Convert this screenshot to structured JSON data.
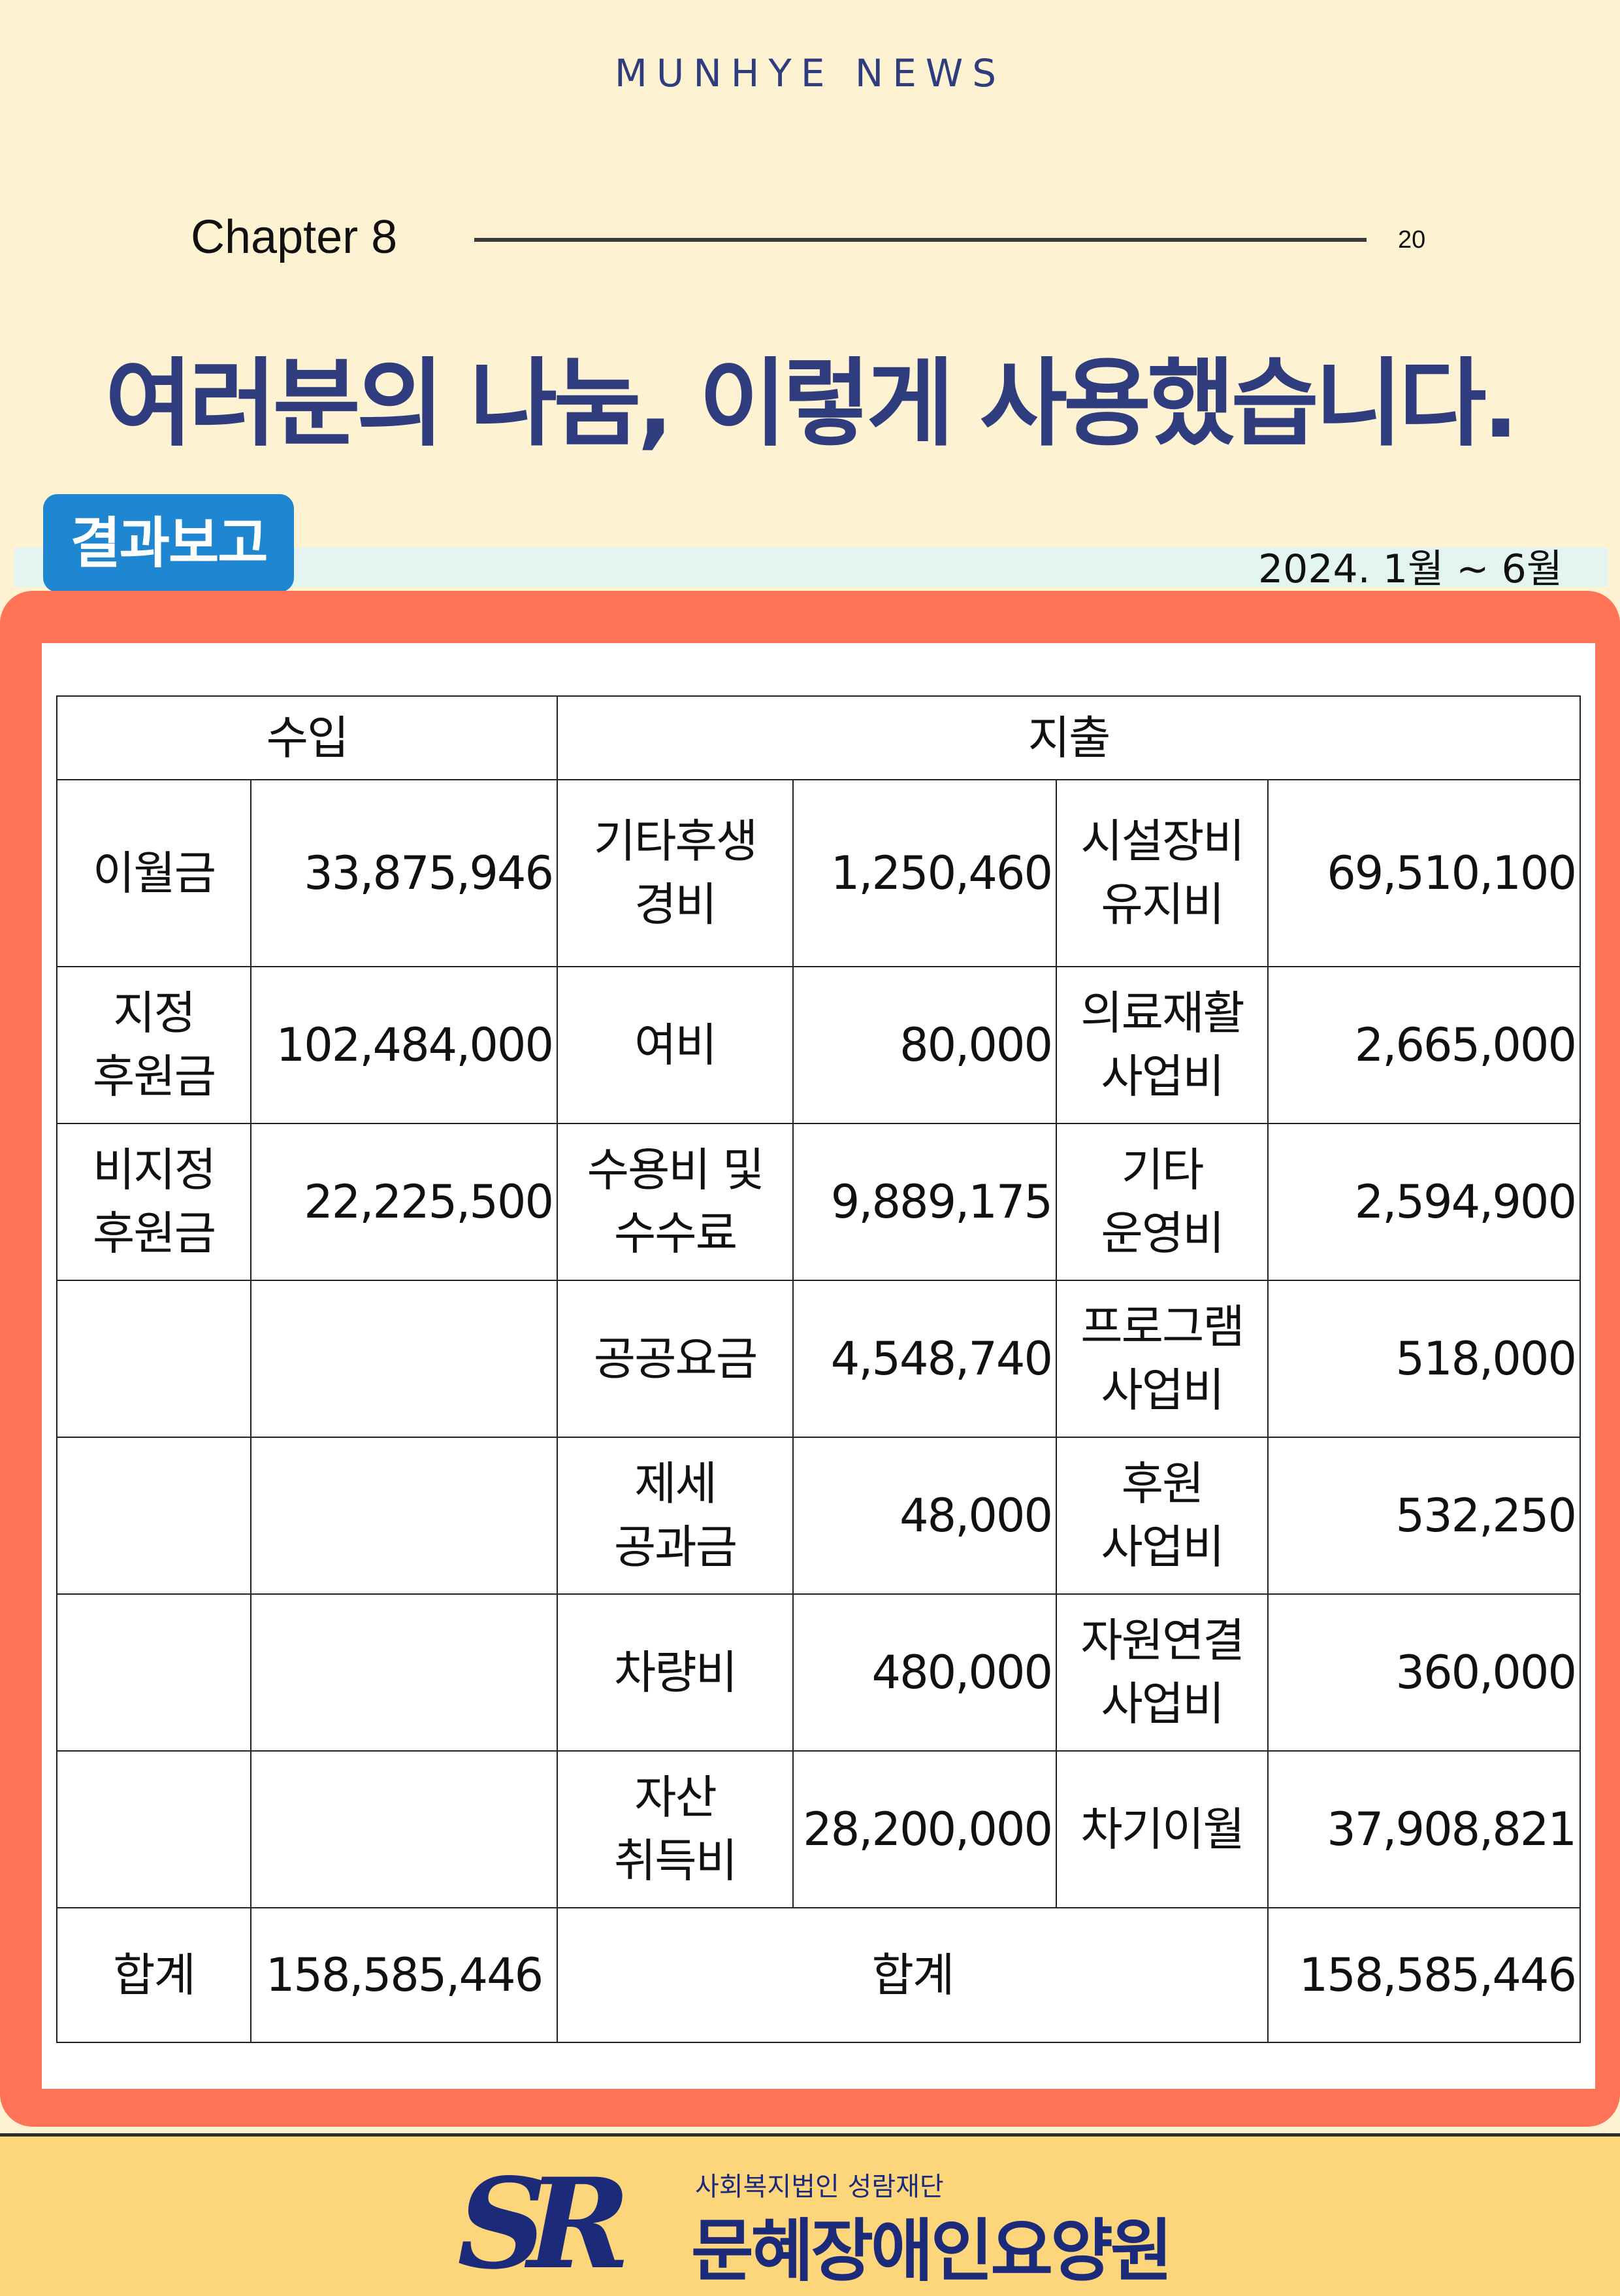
{
  "masthead": "MUNHYE NEWS",
  "chapter": "Chapter 8",
  "page_number": "20",
  "headline": "여러분의 나눔, 이렇게 사용했습니다.",
  "badge": "결과보고",
  "period": "2024. 1월 ~ 6월",
  "table": {
    "header": {
      "income": "수입",
      "expense": "지출"
    },
    "rows": [
      {
        "c1": "이월금",
        "c2": "33,875,946",
        "c3": "기타후생\n경비",
        "c4": "1,250,460",
        "c5": "시설장비\n유지비",
        "c6": "69,510,100"
      },
      {
        "c1": "지정\n후원금",
        "c2": "102,484,000",
        "c3": "여비",
        "c4": "80,000",
        "c5": "의료재활\n사업비",
        "c6": "2,665,000"
      },
      {
        "c1": "비지정\n후원금",
        "c2": "22,225,500",
        "c3": "수용비 및\n수수료",
        "c4": "9,889,175",
        "c5": "기타\n운영비",
        "c6": "2,594,900"
      },
      {
        "c1": "",
        "c2": "",
        "c3": "공공요금",
        "c4": "4,548,740",
        "c5": "프로그램\n사업비",
        "c6": "518,000"
      },
      {
        "c1": "",
        "c2": "",
        "c3": "제세\n공과금",
        "c4": "48,000",
        "c5": "후원\n사업비",
        "c6": "532,250"
      },
      {
        "c1": "",
        "c2": "",
        "c3": "차량비",
        "c4": "480,000",
        "c5": "자원연결\n사업비",
        "c6": "360,000"
      },
      {
        "c1": "",
        "c2": "",
        "c3": "자산\n취득비",
        "c4": "28,200,000",
        "c5": "차기이월",
        "c6": "37,908,821"
      }
    ],
    "total": {
      "income_label": "합계",
      "income_value": "158,585,446",
      "expense_label": "합계",
      "expense_value": "158,585,446"
    }
  },
  "footer": {
    "org": "사회복지법인 성람재단",
    "institution": "문혜장애인요양원",
    "logo_letters": "SR"
  },
  "colors": {
    "background": "#fdf3d2",
    "navy": "#2f3d7e",
    "badge": "#1f87d1",
    "frame": "#ff7457",
    "footer": "#fdd57a"
  }
}
